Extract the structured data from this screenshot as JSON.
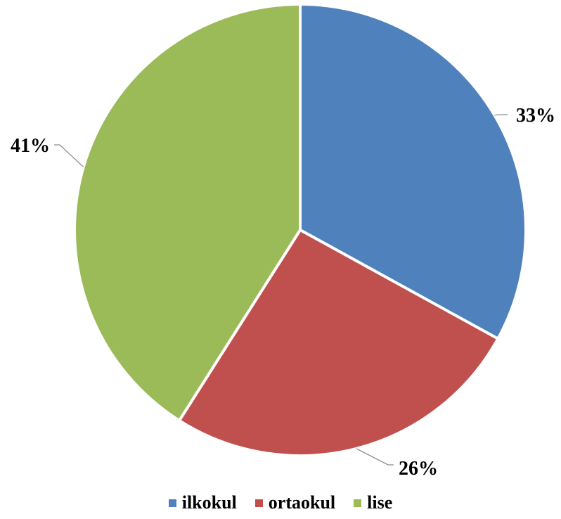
{
  "chart_data": {
    "type": "pie",
    "title": "",
    "categories": [
      "ilkokul",
      "ortaokul",
      "lise"
    ],
    "values": [
      33,
      26,
      41
    ],
    "value_labels": [
      "33%",
      "26%",
      "41%"
    ],
    "colors": [
      "#4F81BD",
      "#C0504D",
      "#9BBB59"
    ],
    "start_angle_deg": 0,
    "direction": "clockwise",
    "data_labels": "outside-with-leader-lines",
    "legend": {
      "position": "bottom",
      "items": [
        {
          "label": "ilkokul",
          "color": "#4F81BD"
        },
        {
          "label": "ortaokul",
          "color": "#C0504D"
        },
        {
          "label": "lise",
          "color": "#9BBB59"
        }
      ]
    }
  }
}
